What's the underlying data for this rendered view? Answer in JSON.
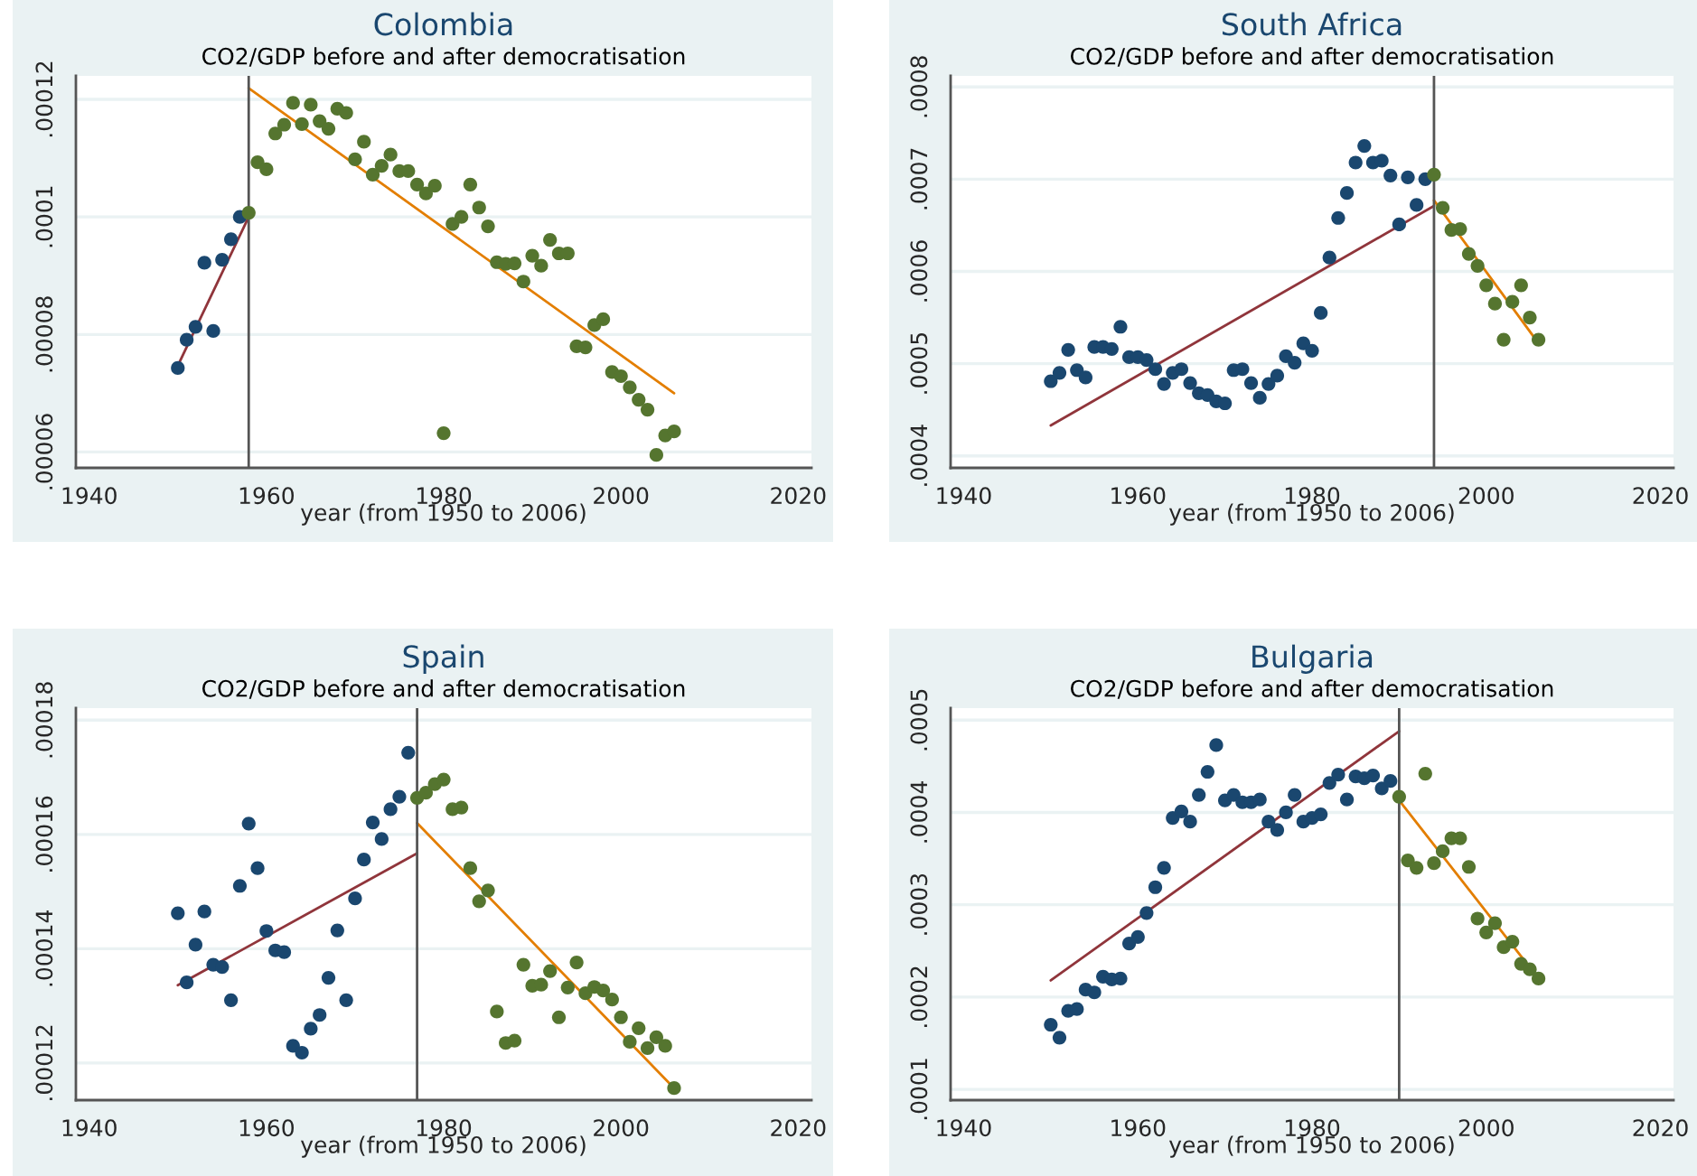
{
  "chart_data": [
    {
      "type": "scatter",
      "title": "Colombia",
      "subtitle": "CO2/GDP before and after democratisation",
      "xlabel": "year (from 1950 to 2006)",
      "xlim": [
        1938.5,
        2021.5
      ],
      "xticks": [
        1940,
        1960,
        1980,
        2000,
        2020
      ],
      "ylim": [
        5.73e-05,
        0.000124
      ],
      "yticks": [
        {
          "value": 6e-05,
          "label": ".00006"
        },
        {
          "value": 8e-05,
          "label": ".00008"
        },
        {
          "value": 0.0001,
          "label": ".0001"
        },
        {
          "value": 0.00012,
          "label": ".00012"
        }
      ],
      "grid": "y",
      "marker": "circle",
      "ref_lines": [
        {
          "axis": "x",
          "value": 1958,
          "color": "#555555"
        }
      ],
      "series": [
        {
          "color": "#1a476f",
          "x": [
            1950,
            1951,
            1952,
            1953,
            1954,
            1955,
            1956,
            1957
          ],
          "values": [
            7.43e-05,
            7.91e-05,
            8.13e-05,
            9.22e-05,
            8.06e-05,
            9.27e-05,
            9.62e-05,
            0.0001
          ]
        },
        {
          "color": "#55752f",
          "x": [
            1958,
            1959,
            1960,
            1961,
            1962,
            1963,
            1964,
            1965,
            1966,
            1967,
            1968,
            1969,
            1970,
            1971,
            1972,
            1973,
            1974,
            1975,
            1976,
            1977,
            1978,
            1979,
            1980,
            1981,
            1982,
            1983,
            1984,
            1985,
            1986,
            1987,
            1988,
            1989,
            1990,
            1991,
            1992,
            1993,
            1994,
            1995,
            1996,
            1997,
            1998,
            1999,
            2000,
            2001,
            2002,
            2003,
            2004,
            2005,
            2006
          ],
          "values": [
            0.0001007,
            0.0001093,
            0.0001081,
            0.0001142,
            0.0001157,
            0.0001194,
            0.0001158,
            0.0001191,
            0.0001163,
            0.000115,
            0.0001184,
            0.0001177,
            0.0001098,
            0.0001128,
            0.0001072,
            0.0001087,
            0.0001106,
            0.0001078,
            0.0001078,
            0.0001055,
            0.000104,
            0.0001053,
            6.32e-05,
            9.88e-05,
            0.0001,
            0.0001055,
            0.0001016,
            9.84e-05,
            9.23e-05,
            9.2e-05,
            9.21e-05,
            8.9e-05,
            9.34e-05,
            9.17e-05,
            9.61e-05,
            9.38e-05,
            9.38e-05,
            7.8e-05,
            7.78e-05,
            8.16e-05,
            8.26e-05,
            7.36e-05,
            7.29e-05,
            7.1e-05,
            6.89e-05,
            6.72e-05,
            5.95e-05,
            6.28e-05,
            6.35e-05
          ]
        },
        {
          "type": "line",
          "color": "#90353b",
          "marker": "none",
          "x": [
            1950,
            1958
          ],
          "values": [
            7.47e-05,
            0.0001
          ]
        },
        {
          "type": "line",
          "color": "#e37e00",
          "marker": "none",
          "x": [
            1958,
            2006
          ],
          "values": [
            0.0001219,
            7e-05
          ]
        }
      ]
    },
    {
      "type": "scatter",
      "title": "South Africa",
      "subtitle": "CO2/GDP before and after democratisation",
      "xlabel": "year (from 1950 to 2006)",
      "xlim": [
        1938.5,
        2021.5
      ],
      "xticks": [
        1940,
        1960,
        1980,
        2000,
        2020
      ],
      "ylim": [
        0.000387,
        0.000812
      ],
      "yticks": [
        {
          "value": 0.0004,
          "label": ".0004"
        },
        {
          "value": 0.0005,
          "label": ".0005"
        },
        {
          "value": 0.0006,
          "label": ".0006"
        },
        {
          "value": 0.0007,
          "label": ".0007"
        },
        {
          "value": 0.0008,
          "label": ".0008"
        }
      ],
      "grid": "y",
      "marker": "circle",
      "ref_lines": [
        {
          "axis": "x",
          "value": 1994,
          "color": "#555555"
        }
      ],
      "series": [
        {
          "color": "#1a476f",
          "x": [
            1950,
            1951,
            1952,
            1953,
            1954,
            1955,
            1956,
            1957,
            1958,
            1959,
            1960,
            1961,
            1962,
            1963,
            1964,
            1965,
            1966,
            1967,
            1968,
            1969,
            1970,
            1971,
            1972,
            1973,
            1974,
            1975,
            1976,
            1977,
            1978,
            1979,
            1980,
            1981,
            1982,
            1983,
            1984,
            1985,
            1986,
            1987,
            1988,
            1989,
            1990,
            1991,
            1992,
            1993
          ],
          "values": [
            0.000481,
            0.00049,
            0.000515,
            0.000493,
            0.000485,
            0.000518,
            0.000518,
            0.000516,
            0.00054,
            0.000507,
            0.000507,
            0.000504,
            0.000494,
            0.000478,
            0.00049,
            0.000494,
            0.000479,
            0.000468,
            0.000466,
            0.000459,
            0.000457,
            0.000493,
            0.000494,
            0.000479,
            0.000463,
            0.000478,
            0.000487,
            0.000508,
            0.000501,
            0.000522,
            0.000514,
            0.000555,
            0.000615,
            0.000658,
            0.000685,
            0.000718,
            0.000736,
            0.000718,
            0.00072,
            0.000704,
            0.000651,
            0.000702,
            0.000672,
            0.0007
          ]
        },
        {
          "color": "#55752f",
          "x": [
            1994,
            1995,
            1996,
            1997,
            1998,
            1999,
            2000,
            2001,
            2002,
            2003,
            2004,
            2005,
            2006
          ],
          "values": [
            0.000705,
            0.000669,
            0.000645,
            0.000646,
            0.000619,
            0.000606,
            0.000585,
            0.000565,
            0.000526,
            0.000567,
            0.000585,
            0.00055,
            0.000526
          ]
        },
        {
          "type": "line",
          "color": "#90353b",
          "marker": "none",
          "x": [
            1950,
            1994
          ],
          "values": [
            0.000433,
            0.000671
          ]
        },
        {
          "type": "line",
          "color": "#e37e00",
          "marker": "none",
          "x": [
            1994,
            2006
          ],
          "values": [
            0.000677,
            0.000522
          ]
        }
      ]
    },
    {
      "type": "scatter",
      "title": "Spain",
      "subtitle": "CO2/GDP before and after democratisation",
      "xlabel": "year (from 1950 to 2006)",
      "xlim": [
        1938.5,
        2021.5
      ],
      "xticks": [
        1940,
        1960,
        1980,
        2000,
        2020
      ],
      "ylim": [
        0.0001135,
        0.0001821
      ],
      "yticks": [
        {
          "value": 0.00012,
          "label": ".00012"
        },
        {
          "value": 0.00014,
          "label": ".00014"
        },
        {
          "value": 0.00016,
          "label": ".00016"
        },
        {
          "value": 0.00018,
          "label": ".00018"
        }
      ],
      "grid": "y",
      "marker": "circle",
      "ref_lines": [
        {
          "axis": "x",
          "value": 1977,
          "color": "#555555"
        }
      ],
      "series": [
        {
          "color": "#1a476f",
          "x": [
            1950,
            1951,
            1952,
            1953,
            1954,
            1955,
            1956,
            1957,
            1958,
            1959,
            1960,
            1961,
            1962,
            1963,
            1964,
            1965,
            1966,
            1967,
            1968,
            1969,
            1970,
            1971,
            1972,
            1973,
            1974,
            1975,
            1976
          ],
          "values": [
            0.0001462,
            0.0001341,
            0.0001407,
            0.0001465,
            0.0001372,
            0.0001368,
            0.000131,
            0.000151,
            0.0001619,
            0.0001541,
            0.0001431,
            0.0001397,
            0.0001394,
            0.000123,
            0.0001218,
            0.000126,
            0.0001284,
            0.0001349,
            0.0001432,
            0.000131,
            0.0001488,
            0.0001556,
            0.0001621,
            0.0001592,
            0.0001644,
            0.0001666,
            0.0001743
          ]
        },
        {
          "color": "#55752f",
          "x": [
            1977,
            1978,
            1979,
            1980,
            1981,
            1982,
            1983,
            1984,
            1985,
            1986,
            1987,
            1988,
            1989,
            1990,
            1991,
            1992,
            1993,
            1994,
            1995,
            1996,
            1997,
            1998,
            1999,
            2000,
            2001,
            2002,
            2003,
            2004,
            2005,
            2006
          ],
          "values": [
            0.0001664,
            0.0001673,
            0.0001688,
            0.0001696,
            0.0001644,
            0.0001647,
            0.0001541,
            0.0001483,
            0.0001502,
            0.000129,
            0.0001235,
            0.0001239,
            0.0001372,
            0.0001335,
            0.0001337,
            0.0001361,
            0.000128,
            0.0001332,
            0.0001376,
            0.0001322,
            0.0001333,
            0.0001327,
            0.0001311,
            0.000128,
            0.0001237,
            0.0001261,
            0.0001226,
            0.0001245,
            0.000123,
            0.0001156
          ]
        },
        {
          "type": "line",
          "color": "#90353b",
          "marker": "none",
          "x": [
            1950,
            1977
          ],
          "values": [
            0.0001336,
            0.0001567
          ]
        },
        {
          "type": "line",
          "color": "#e37e00",
          "marker": "none",
          "x": [
            1977,
            2006
          ],
          "values": [
            0.000162,
            0.0001156
          ]
        }
      ]
    },
    {
      "type": "scatter",
      "title": "Bulgaria",
      "subtitle": "CO2/GDP before and after democratisation",
      "xlabel": "year (from 1950 to 2006)",
      "xlim": [
        1938.5,
        2021.5
      ],
      "xticks": [
        1940,
        1960,
        1980,
        2000,
        2020
      ],
      "ylim": [
        8.83e-05,
        0.000513
      ],
      "yticks": [
        {
          "value": 0.0001,
          "label": ".0001"
        },
        {
          "value": 0.0002,
          "label": ".0002"
        },
        {
          "value": 0.0003,
          "label": ".0003"
        },
        {
          "value": 0.0004,
          "label": ".0004"
        },
        {
          "value": 0.0005,
          "label": ".0005"
        }
      ],
      "grid": "y",
      "marker": "circle",
      "ref_lines": [
        {
          "axis": "x",
          "value": 1990,
          "color": "#555555"
        }
      ],
      "series": [
        {
          "color": "#1a476f",
          "x": [
            1950,
            1951,
            1952,
            1953,
            1954,
            1955,
            1956,
            1957,
            1958,
            1959,
            1960,
            1961,
            1962,
            1963,
            1964,
            1965,
            1966,
            1967,
            1968,
            1969,
            1970,
            1971,
            1972,
            1973,
            1974,
            1975,
            1976,
            1977,
            1978,
            1979,
            1980,
            1981,
            1982,
            1983,
            1984,
            1985,
            1986,
            1987,
            1988,
            1989
          ],
          "values": [
            0.00017,
            0.000156,
            0.000185,
            0.000187,
            0.000208,
            0.000205,
            0.000222,
            0.000219,
            0.00022,
            0.000258,
            0.000265,
            0.000291,
            0.000319,
            0.00034,
            0.000394,
            0.000401,
            0.00039,
            0.000419,
            0.000444,
            0.000473,
            0.000413,
            0.000419,
            0.000411,
            0.000411,
            0.000414,
            0.00039,
            0.000381,
            0.0004,
            0.000419,
            0.00039,
            0.000394,
            0.000398,
            0.000432,
            0.000441,
            0.000414,
            0.000439,
            0.000437,
            0.00044,
            0.000426,
            0.000434
          ]
        },
        {
          "color": "#55752f",
          "x": [
            1990,
            1991,
            1992,
            1993,
            1994,
            1995,
            1996,
            1997,
            1998,
            1999,
            2000,
            2001,
            2002,
            2003,
            2004,
            2005,
            2006
          ],
          "values": [
            0.000417,
            0.000348,
            0.00034,
            0.000442,
            0.000345,
            0.000358,
            0.000372,
            0.000372,
            0.000341,
            0.000285,
            0.00027,
            0.00028,
            0.000254,
            0.00026,
            0.000236,
            0.00023,
            0.00022
          ]
        },
        {
          "type": "line",
          "color": "#90353b",
          "marker": "none",
          "x": [
            1950,
            1990
          ],
          "values": [
            0.000218,
            0.000488
          ]
        },
        {
          "type": "line",
          "color": "#e37e00",
          "marker": "none",
          "x": [
            1990,
            2006
          ],
          "values": [
            0.000413,
            0.00022
          ]
        }
      ]
    }
  ]
}
